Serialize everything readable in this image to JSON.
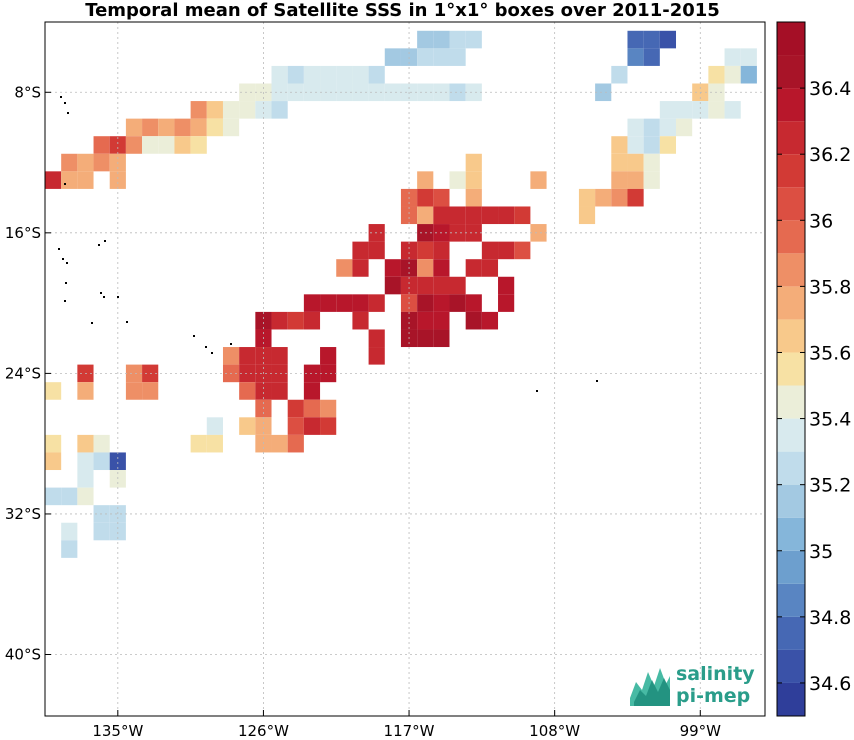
{
  "title": "Temporal mean of Satellite SSS in 1°x1° boxes over 2011-2015",
  "logo": {
    "line1": "salinity",
    "line2": "pi-mep"
  },
  "map": {
    "lon_range": [
      -139.5,
      -95
    ],
    "lat_range": [
      -43.5,
      -4
    ],
    "x_ticks": [
      {
        "value": -135,
        "label": "135°W"
      },
      {
        "value": -126,
        "label": "126°W"
      },
      {
        "value": -117,
        "label": "117°W"
      },
      {
        "value": -108,
        "label": "108°W"
      },
      {
        "value": -99,
        "label": "99°W"
      }
    ],
    "y_ticks": [
      {
        "value": -8,
        "label": "8°S"
      },
      {
        "value": -16,
        "label": "16°S"
      },
      {
        "value": -24,
        "label": "24°S"
      },
      {
        "value": -32,
        "label": "32°S"
      },
      {
        "value": -40,
        "label": "40°S"
      }
    ],
    "grid": true,
    "colorbar": {
      "min": 34.5,
      "max": 36.6,
      "levels": 21,
      "ticks": [
        34.6,
        34.8,
        35,
        35.2,
        35.4,
        35.6,
        35.8,
        36,
        36.2,
        36.4
      ],
      "colormap": [
        "#2f3e9a",
        "#3a52a8",
        "#4668b4",
        "#5985c2",
        "#6d9fce",
        "#85b6da",
        "#a3c9e2",
        "#c0dceb",
        "#d8eaee",
        "#ebeed9",
        "#f7e1a4",
        "#f8c98b",
        "#f4ad79",
        "#ee8f66",
        "#e56a50",
        "#dc4f42",
        "#d23a35",
        "#c72930",
        "#b8172b",
        "#a81428",
        "#a50f26"
      ]
    }
  },
  "chart_data": {
    "type": "heatmap",
    "title": "Temporal mean of Satellite SSS in 1°x1° boxes over 2011-2015",
    "xlabel": "",
    "ylabel": "",
    "colorbar_label": "",
    "xlim": [
      -139.5,
      -95
    ],
    "ylim": [
      -43.5,
      -4
    ],
    "cells": [
      [
        -116,
        -5,
        35.15
      ],
      [
        -115,
        -5,
        35.15
      ],
      [
        -114,
        -5,
        35.25
      ],
      [
        -113,
        -5,
        35.3
      ],
      [
        -103,
        -5,
        34.7
      ],
      [
        -102,
        -5,
        34.7
      ],
      [
        -101,
        -5,
        34.6
      ],
      [
        -118,
        -6,
        35.1
      ],
      [
        -117,
        -6,
        35.15
      ],
      [
        -116,
        -6,
        35.2
      ],
      [
        -115,
        -6,
        35.3
      ],
      [
        -114,
        -6,
        35.3
      ],
      [
        -103,
        -6,
        34.9
      ],
      [
        -102,
        -6,
        34.8
      ],
      [
        -97,
        -6,
        35.35
      ],
      [
        -96,
        -6,
        35.35
      ],
      [
        -125,
        -7,
        35.35
      ],
      [
        -124,
        -7,
        35.3
      ],
      [
        -123,
        -7,
        35.35
      ],
      [
        -122,
        -7,
        35.35
      ],
      [
        -121,
        -7,
        35.4
      ],
      [
        -120,
        -7,
        35.35
      ],
      [
        -119,
        -7,
        35.3
      ],
      [
        -104,
        -7,
        35.2
      ],
      [
        -98,
        -7,
        35.55
      ],
      [
        -97,
        -7,
        35.5
      ],
      [
        -96,
        -7,
        35.05
      ],
      [
        -127,
        -8,
        35.45
      ],
      [
        -126,
        -8,
        35.45
      ],
      [
        -125,
        -8,
        35.4
      ],
      [
        -124,
        -8,
        35.35
      ],
      [
        -123,
        -8,
        35.4
      ],
      [
        -122,
        -8,
        35.4
      ],
      [
        -121,
        -8,
        35.35
      ],
      [
        -120,
        -8,
        35.35
      ],
      [
        -119,
        -8,
        35.35
      ],
      [
        -118,
        -8,
        35.35
      ],
      [
        -117,
        -8,
        35.35
      ],
      [
        -116,
        -8,
        35.35
      ],
      [
        -115,
        -8,
        35.35
      ],
      [
        -114,
        -8,
        35.3
      ],
      [
        -113,
        -8,
        35.35
      ],
      [
        -105,
        -8,
        35.15
      ],
      [
        -99,
        -8,
        35.6
      ],
      [
        -98,
        -8,
        35.5
      ],
      [
        -130,
        -9,
        35.85
      ],
      [
        -129,
        -9,
        35.6
      ],
      [
        -128,
        -9,
        35.5
      ],
      [
        -127,
        -9,
        35.45
      ],
      [
        -126,
        -9,
        35.4
      ],
      [
        -125,
        -9,
        35.3
      ],
      [
        -101,
        -9,
        35.4
      ],
      [
        -100,
        -9,
        35.4
      ],
      [
        -99,
        -9,
        35.4
      ],
      [
        -98,
        -9,
        35.5
      ],
      [
        -97,
        -9,
        35.4
      ],
      [
        -134,
        -10,
        35.75
      ],
      [
        -133,
        -10,
        35.85
      ],
      [
        -132,
        -10,
        35.7
      ],
      [
        -131,
        -10,
        35.9
      ],
      [
        -130,
        -10,
        35.75
      ],
      [
        -129,
        -10,
        35.55
      ],
      [
        -128,
        -10,
        35.5
      ],
      [
        -103,
        -10,
        35.35
      ],
      [
        -102,
        -10,
        35.3
      ],
      [
        -101,
        -10,
        35.35
      ],
      [
        -100,
        -10,
        35.45
      ],
      [
        -136,
        -11,
        36.0
      ],
      [
        -135,
        -11,
        36.1
      ],
      [
        -134,
        -11,
        35.85
      ],
      [
        -133,
        -11,
        35.5
      ],
      [
        -132,
        -11,
        35.45
      ],
      [
        -131,
        -11,
        35.6
      ],
      [
        -130,
        -11,
        35.55
      ],
      [
        -104,
        -11,
        35.6
      ],
      [
        -103,
        -11,
        35.4
      ],
      [
        -102,
        -11,
        35.3
      ],
      [
        -101,
        -11,
        35.55
      ],
      [
        -138,
        -12,
        35.9
      ],
      [
        -137,
        -12,
        35.75
      ],
      [
        -136,
        -12,
        35.9
      ],
      [
        -135,
        -12,
        35.8
      ],
      [
        -113,
        -12,
        35.6
      ],
      [
        -104,
        -12,
        35.6
      ],
      [
        -103,
        -12,
        35.6
      ],
      [
        -102,
        -12,
        35.45
      ],
      [
        -140,
        -13,
        36.15
      ],
      [
        -139,
        -13,
        36.25
      ],
      [
        -138,
        -13,
        35.7
      ],
      [
        -137,
        -13,
        35.7
      ],
      [
        -135,
        -13,
        35.75
      ],
      [
        -116,
        -13,
        35.8
      ],
      [
        -114,
        -13,
        35.45
      ],
      [
        -113,
        -13,
        35.65
      ],
      [
        -109,
        -13,
        35.7
      ],
      [
        -104,
        -13,
        35.75
      ],
      [
        -103,
        -13,
        35.8
      ],
      [
        -102,
        -13,
        35.5
      ],
      [
        -117,
        -14,
        36.0
      ],
      [
        -116,
        -14,
        36.15
      ],
      [
        -115,
        -14,
        36.05
      ],
      [
        -113,
        -14,
        35.75
      ],
      [
        -106,
        -14,
        35.65
      ],
      [
        -105,
        -14,
        35.75
      ],
      [
        -104,
        -14,
        35.85
      ],
      [
        -103,
        -14,
        36.15
      ],
      [
        -117,
        -15,
        35.95
      ],
      [
        -116,
        -15,
        35.75
      ],
      [
        -115,
        -15,
        36.3
      ],
      [
        -114,
        -15,
        36.25
      ],
      [
        -113,
        -15,
        36.25
      ],
      [
        -112,
        -15,
        36.3
      ],
      [
        -111,
        -15,
        36.25
      ],
      [
        -110,
        -15,
        36.1
      ],
      [
        -106,
        -15,
        35.65
      ],
      [
        -119,
        -16,
        36.25
      ],
      [
        -116,
        -16,
        36.45
      ],
      [
        -115,
        -16,
        36.35
      ],
      [
        -114,
        -16,
        36.25
      ],
      [
        -113,
        -16,
        36.25
      ],
      [
        -109,
        -16,
        35.75
      ],
      [
        -120,
        -17,
        36.25
      ],
      [
        -119,
        -17,
        36.2
      ],
      [
        -117,
        -17,
        36.2
      ],
      [
        -116,
        -17,
        36.15
      ],
      [
        -115,
        -17,
        36.2
      ],
      [
        -112,
        -17,
        36.25
      ],
      [
        -111,
        -17,
        36.25
      ],
      [
        -110,
        -17,
        36.05
      ],
      [
        -121,
        -18,
        35.85
      ],
      [
        -120,
        -18,
        36.25
      ],
      [
        -118,
        -18,
        36.4
      ],
      [
        -117,
        -18,
        36.45
      ],
      [
        -116,
        -18,
        35.9
      ],
      [
        -115,
        -18,
        36.35
      ],
      [
        -113,
        -18,
        36.25
      ],
      [
        -112,
        -18,
        36.25
      ],
      [
        -118,
        -19,
        36.45
      ],
      [
        -117,
        -19,
        36.3
      ],
      [
        -116,
        -19,
        36.25
      ],
      [
        -115,
        -19,
        36.2
      ],
      [
        -114,
        -19,
        36.3
      ],
      [
        -111,
        -19,
        36.4
      ],
      [
        -123,
        -20,
        36.35
      ],
      [
        -122,
        -20,
        36.35
      ],
      [
        -121,
        -20,
        36.35
      ],
      [
        -120,
        -20,
        36.35
      ],
      [
        -119,
        -20,
        36.2
      ],
      [
        -117,
        -20,
        36.05
      ],
      [
        -116,
        -20,
        36.45
      ],
      [
        -115,
        -20,
        36.4
      ],
      [
        -114,
        -20,
        36.45
      ],
      [
        -113,
        -20,
        36.35
      ],
      [
        -111,
        -20,
        36.4
      ],
      [
        -126,
        -21,
        36.45
      ],
      [
        -125,
        -21,
        36.25
      ],
      [
        -124,
        -21,
        36.15
      ],
      [
        -123,
        -21,
        36.3
      ],
      [
        -120,
        -21,
        36.3
      ],
      [
        -117,
        -21,
        36.45
      ],
      [
        -116,
        -21,
        36.35
      ],
      [
        -115,
        -21,
        36.35
      ],
      [
        -113,
        -21,
        36.45
      ],
      [
        -112,
        -21,
        36.35
      ],
      [
        -126,
        -22,
        36.4
      ],
      [
        -119,
        -22,
        36.25
      ],
      [
        -117,
        -22,
        36.45
      ],
      [
        -116,
        -22,
        36.45
      ],
      [
        -115,
        -22,
        36.45
      ],
      [
        -128,
        -23,
        35.9
      ],
      [
        -127,
        -23,
        36.2
      ],
      [
        -126,
        -23,
        36.25
      ],
      [
        -125,
        -23,
        36.3
      ],
      [
        -122,
        -23,
        36.35
      ],
      [
        -119,
        -23,
        36.3
      ],
      [
        -137,
        -24,
        36.15
      ],
      [
        -134,
        -24,
        35.85
      ],
      [
        -133,
        -24,
        36.15
      ],
      [
        -128,
        -24,
        35.95
      ],
      [
        -127,
        -24,
        36.25
      ],
      [
        -126,
        -24,
        36.3
      ],
      [
        -125,
        -24,
        36.3
      ],
      [
        -123,
        -24,
        36.4
      ],
      [
        -122,
        -24,
        36.35
      ],
      [
        -139,
        -25,
        35.55
      ],
      [
        -137,
        -25,
        35.75
      ],
      [
        -134,
        -25,
        35.85
      ],
      [
        -133,
        -25,
        35.9
      ],
      [
        -127,
        -25,
        36.0
      ],
      [
        -126,
        -25,
        36.2
      ],
      [
        -125,
        -25,
        36.3
      ],
      [
        -123,
        -25,
        36.35
      ],
      [
        -126,
        -26,
        35.95
      ],
      [
        -124,
        -26,
        36.15
      ],
      [
        -123,
        -26,
        35.95
      ],
      [
        -122,
        -26,
        35.85
      ],
      [
        -129,
        -27,
        35.35
      ],
      [
        -127,
        -27,
        35.65
      ],
      [
        -126,
        -27,
        35.8
      ],
      [
        -124,
        -27,
        36.05
      ],
      [
        -123,
        -27,
        36.3
      ],
      [
        -122,
        -27,
        36.15
      ],
      [
        -140,
        -28,
        35.55
      ],
      [
        -139,
        -28,
        35.55
      ],
      [
        -137,
        -28,
        35.6
      ],
      [
        -136,
        -28,
        35.45
      ],
      [
        -130,
        -28,
        35.55
      ],
      [
        -129,
        -28,
        35.55
      ],
      [
        -126,
        -28,
        35.75
      ],
      [
        -125,
        -28,
        35.8
      ],
      [
        -124,
        -28,
        35.95
      ],
      [
        -140,
        -29,
        35.6
      ],
      [
        -139,
        -29,
        35.6
      ],
      [
        -137,
        -29,
        35.4
      ],
      [
        -136,
        -29,
        35.25
      ],
      [
        -135,
        -29,
        34.65
      ],
      [
        -137,
        -30,
        35.35
      ],
      [
        -135,
        -30,
        35.5
      ],
      [
        -139,
        -31,
        35.2
      ],
      [
        -138,
        -31,
        35.25
      ],
      [
        -137,
        -31,
        35.5
      ],
      [
        -136,
        -32,
        35.2
      ],
      [
        -135,
        -32,
        35.25
      ],
      [
        -138,
        -33,
        35.4
      ],
      [
        -136,
        -33,
        35.25
      ],
      [
        -135,
        -33,
        35.3
      ],
      [
        -138,
        -34,
        35.3
      ]
    ]
  }
}
